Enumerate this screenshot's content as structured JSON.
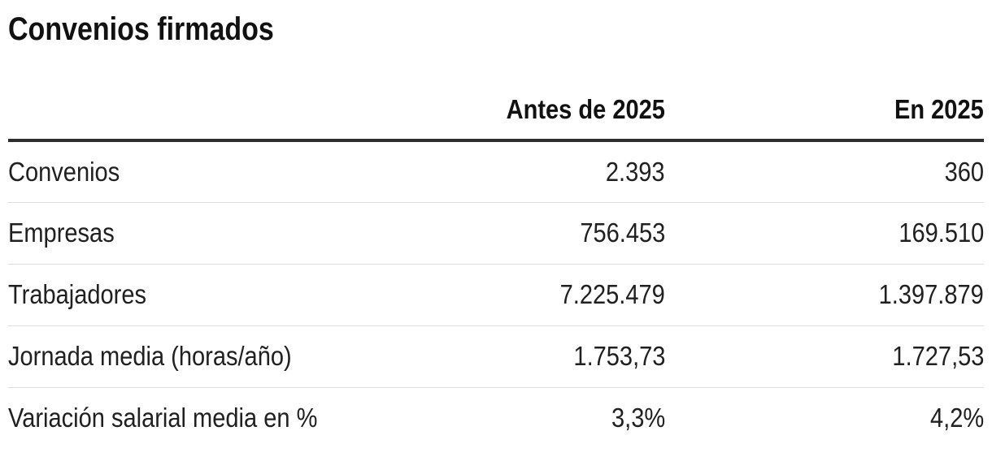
{
  "title": "Convenios firmados",
  "colors": {
    "background": "#ffffff",
    "title_text": "#111111",
    "body_text": "#202020",
    "header_rule": "#2e2e2e",
    "row_rule": "#dddddd"
  },
  "chart_data": {
    "type": "table",
    "title": "Convenios firmados",
    "columns": [
      "",
      "Antes de 2025",
      "En 2025"
    ],
    "rows": [
      [
        "Convenios",
        "2.393",
        "360"
      ],
      [
        "Empresas",
        "756.453",
        "169.510"
      ],
      [
        "Trabajadores",
        "7.225.479",
        "1.397.879"
      ],
      [
        "Jornada media (horas/año)",
        "1.753,73",
        "1.727,53"
      ],
      [
        "Variación salarial media en %",
        "3,3%",
        "4,2%"
      ]
    ],
    "categories": [
      "Convenios",
      "Empresas",
      "Trabajadores",
      "Jornada media (horas/año)",
      "Variación salarial media en %"
    ],
    "series": [
      {
        "name": "Antes de 2025",
        "values": [
          2393,
          756453,
          7225479,
          1753.73,
          3.3
        ]
      },
      {
        "name": "En 2025",
        "values": [
          360,
          169510,
          1397879,
          1727.53,
          4.2
        ]
      }
    ],
    "layout": {
      "value_columns_alignment": "right",
      "header_rule": "heavy",
      "row_rules": "light",
      "grid": "horizontal-only"
    }
  }
}
